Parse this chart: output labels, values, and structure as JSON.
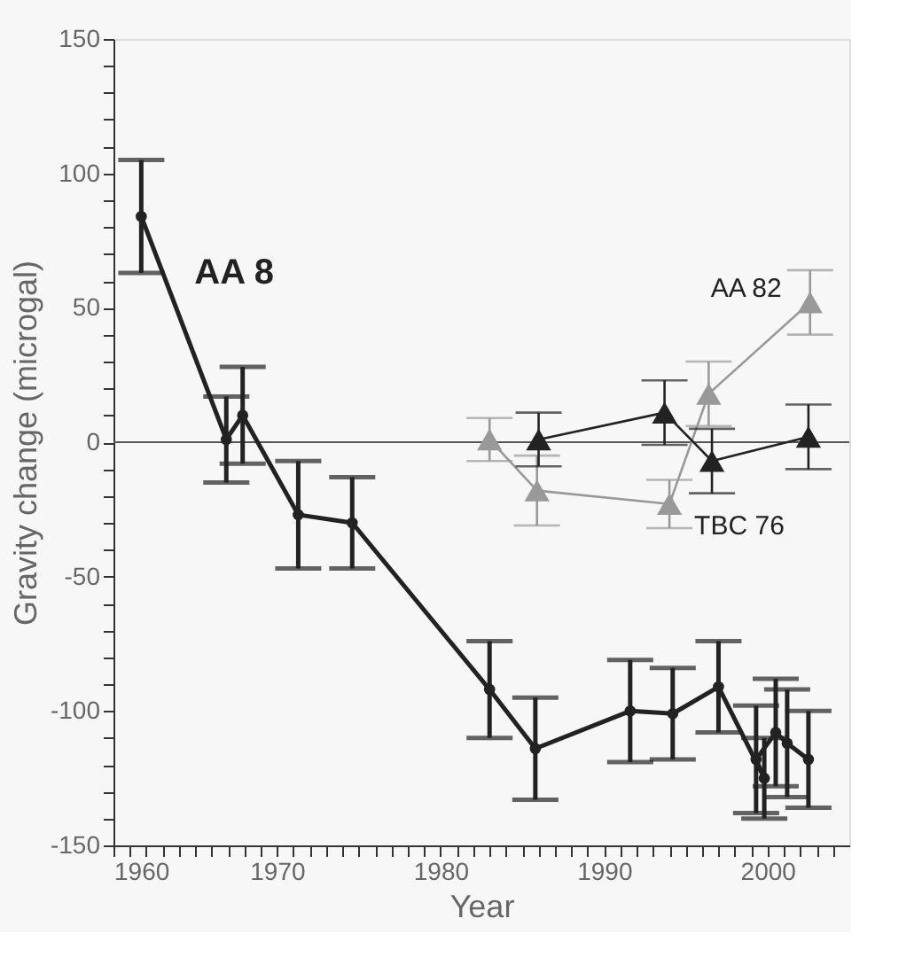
{
  "chart_data": {
    "type": "line",
    "xlabel": "Year",
    "ylabel": "Gravity change (microgal)",
    "xlim": [
      1960,
      2005
    ],
    "ylim": [
      -150,
      150
    ],
    "xticks": [
      1960,
      {
        "value": 1961,
        "label": null
      },
      {
        "value": 1962,
        "label": null
      },
      {
        "value": 1963,
        "label": null
      },
      {
        "value": 1964,
        "label": null
      },
      {
        "value": 1965,
        "label": null
      },
      {
        "value": 1966,
        "label": null
      },
      {
        "value": 1967,
        "label": null
      },
      {
        "value": 1968,
        "label": null
      },
      {
        "value": 1969,
        "label": null
      },
      1970,
      {
        "value": 1971,
        "label": null
      },
      {
        "value": 1972,
        "label": null
      },
      {
        "value": 1973,
        "label": null
      },
      {
        "value": 1974,
        "label": null
      },
      {
        "value": 1975,
        "label": null
      },
      {
        "value": 1976,
        "label": null
      },
      {
        "value": 1977,
        "label": null
      },
      {
        "value": 1978,
        "label": null
      },
      {
        "value": 1979,
        "label": null
      },
      1980,
      {
        "value": 1981,
        "label": null
      },
      {
        "value": 1982,
        "label": null
      },
      {
        "value": 1983,
        "label": null
      },
      {
        "value": 1984,
        "label": null
      },
      {
        "value": 1985,
        "label": null
      },
      {
        "value": 1986,
        "label": null
      },
      {
        "value": 1987,
        "label": null
      },
      {
        "value": 1988,
        "label": null
      },
      {
        "value": 1989,
        "label": null
      },
      1990,
      {
        "value": 1991,
        "label": null
      },
      {
        "value": 1992,
        "label": null
      },
      {
        "value": 1993,
        "label": null
      },
      {
        "value": 1994,
        "label": null
      },
      {
        "value": 1995,
        "label": null
      },
      {
        "value": 1996,
        "label": null
      },
      {
        "value": 1997,
        "label": null
      },
      {
        "value": 1998,
        "label": null
      },
      {
        "value": 1999,
        "label": null
      },
      2000,
      {
        "value": 2001,
        "label": null
      },
      {
        "value": 2002,
        "label": null
      },
      {
        "value": 2003,
        "label": null
      },
      {
        "value": 2004,
        "label": null
      }
    ],
    "yticks": [
      -150,
      {
        "value": -140,
        "label": null
      },
      {
        "value": -130,
        "label": null
      },
      {
        "value": -120,
        "label": null
      },
      {
        "value": -110,
        "label": null
      },
      -100,
      {
        "value": -90,
        "label": null
      },
      {
        "value": -80,
        "label": null
      },
      {
        "value": -70,
        "label": null
      },
      {
        "value": -60,
        "label": null
      },
      -50,
      {
        "value": -40,
        "label": null
      },
      {
        "value": -30,
        "label": null
      },
      {
        "value": -20,
        "label": null
      },
      {
        "value": -10,
        "label": null
      },
      0,
      {
        "value": 10,
        "label": null
      },
      {
        "value": 20,
        "label": null
      },
      {
        "value": 30,
        "label": null
      },
      {
        "value": 40,
        "label": null
      },
      50,
      {
        "value": 60,
        "label": null
      },
      {
        "value": 70,
        "label": null
      },
      {
        "value": 80,
        "label": null
      },
      {
        "value": 90,
        "label": null
      },
      100,
      {
        "value": 110,
        "label": null
      },
      {
        "value": 120,
        "label": null
      },
      {
        "value": 130,
        "label": null
      },
      {
        "value": 140,
        "label": null
      },
      150
    ],
    "grid": false,
    "line_style": "solid",
    "series": [
      {
        "color": "#222222",
        "marker": "circle",
        "x": [
          1961.7,
          1966.9,
          1967.9,
          1971.3,
          1974.6,
          1983,
          1985.8,
          1991.6,
          1994.2,
          1997,
          1999.8,
          1999.3,
          2000.5,
          2001.2,
          2002.5
        ],
        "values": [
          84,
          1,
          10,
          -27,
          -30,
          -92,
          -114,
          -100,
          -101,
          -91,
          -125,
          -118,
          -108,
          -112,
          -118
        ],
        "errors": [
          21,
          16,
          18,
          20,
          17,
          18,
          19,
          19,
          17,
          17,
          15,
          20,
          20,
          20,
          18
        ]
      },
      {
        "color": "#999999",
        "marker": "triangle",
        "x": [
          1983,
          1985.9,
          1994,
          1996.4,
          2002.6
        ],
        "values": [
          1,
          -18,
          -23,
          18,
          52
        ],
        "errors": [
          8,
          13,
          9,
          12,
          12
        ]
      },
      {
        "color": "#222222",
        "marker": "triangle",
        "x": [
          1986,
          1993.7,
          1996.6,
          2002.5
        ],
        "values": [
          1,
          11,
          -7,
          2
        ],
        "errors": [
          10,
          12,
          12,
          12
        ]
      }
    ],
    "ref_lines": [
      {
        "axis": "y",
        "value": 0,
        "color": "#555555"
      }
    ],
    "annotations": [
      {
        "text": "AA 8",
        "x": 1961.7,
        "y": 84
      },
      {
        "text": "AA 82",
        "x": 2002.6,
        "y": 52
      },
      {
        "text": "TBC 76",
        "x": 1994,
        "y": -23
      }
    ]
  }
}
